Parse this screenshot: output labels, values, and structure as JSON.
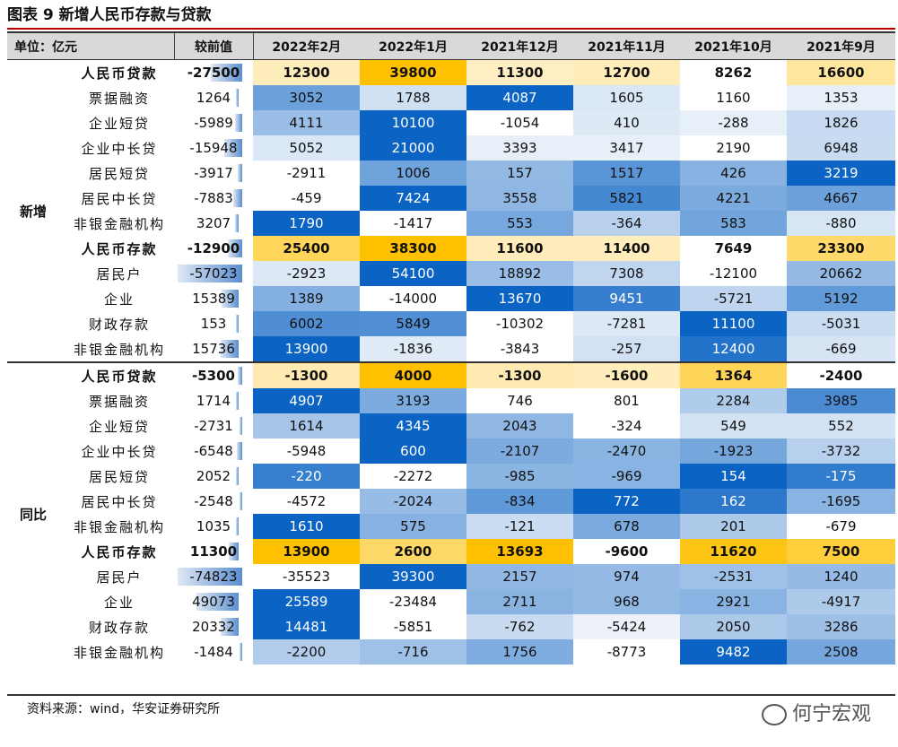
{
  "title": "图表 9  新增人民币存款与贷款",
  "header": {
    "unit": "单位：亿元",
    "change": "较前值",
    "months": [
      "2022年2月",
      "2022年1月",
      "2021年12月",
      "2021年11月",
      "2021年10月",
      "2021年9月"
    ]
  },
  "groups": [
    {
      "label": "新增",
      "rows": [
        {
          "name": "人民币贷款",
          "bold": true,
          "change": "-27500",
          "values": [
            "12300",
            "39800",
            "11300",
            "12700",
            "8262",
            "16600"
          ]
        },
        {
          "name": "票据融资",
          "bold": false,
          "change": "1264",
          "values": [
            "3052",
            "1788",
            "4087",
            "1605",
            "1160",
            "1353"
          ]
        },
        {
          "name": "企业短贷",
          "bold": false,
          "change": "-5989",
          "values": [
            "4111",
            "10100",
            "-1054",
            "410",
            "-288",
            "1826"
          ]
        },
        {
          "name": "企业中长贷",
          "bold": false,
          "change": "-15948",
          "values": [
            "5052",
            "21000",
            "3393",
            "3417",
            "2190",
            "6948"
          ]
        },
        {
          "name": "居民短贷",
          "bold": false,
          "change": "-3917",
          "values": [
            "-2911",
            "1006",
            "157",
            "1517",
            "426",
            "3219"
          ]
        },
        {
          "name": "居民中长贷",
          "bold": false,
          "change": "-7883",
          "values": [
            "-459",
            "7424",
            "3558",
            "5821",
            "4221",
            "4667"
          ]
        },
        {
          "name": "非银金融机构",
          "bold": false,
          "change": "3207",
          "values": [
            "1790",
            "-1417",
            "553",
            "-364",
            "583",
            "-880"
          ]
        },
        {
          "name": "人民币存款",
          "bold": true,
          "change": "-12900",
          "values": [
            "25400",
            "38300",
            "11600",
            "11400",
            "7649",
            "23300"
          ]
        },
        {
          "name": "居民户",
          "bold": false,
          "change": "-57023",
          "values": [
            "-2923",
            "54100",
            "18892",
            "7308",
            "-12100",
            "20662"
          ]
        },
        {
          "name": "企业",
          "bold": false,
          "change": "15389",
          "values": [
            "1389",
            "-14000",
            "13670",
            "9451",
            "-5721",
            "5192"
          ]
        },
        {
          "name": "财政存款",
          "bold": false,
          "change": "153",
          "values": [
            "6002",
            "5849",
            "-10302",
            "-7281",
            "11100",
            "-5031"
          ]
        },
        {
          "name": "非银金融机构",
          "bold": false,
          "change": "15736",
          "values": [
            "13900",
            "-1836",
            "-3843",
            "-257",
            "12400",
            "-669"
          ]
        }
      ]
    },
    {
      "label": "同比",
      "rows": [
        {
          "name": "人民币贷款",
          "bold": true,
          "change": "-5300",
          "values": [
            "-1300",
            "4000",
            "-1300",
            "-1600",
            "1364",
            "-2400"
          ]
        },
        {
          "name": "票据融资",
          "bold": false,
          "change": "1714",
          "values": [
            "4907",
            "3193",
            "746",
            "801",
            "2284",
            "3985"
          ]
        },
        {
          "name": "企业短贷",
          "bold": false,
          "change": "-2731",
          "values": [
            "1614",
            "4345",
            "2043",
            "-324",
            "549",
            "552"
          ]
        },
        {
          "name": "企业中长贷",
          "bold": false,
          "change": "-6548",
          "values": [
            "-5948",
            "600",
            "-2107",
            "-2470",
            "-1923",
            "-3732"
          ]
        },
        {
          "name": "居民短贷",
          "bold": false,
          "change": "2052",
          "values": [
            "-220",
            "-2272",
            "-985",
            "-969",
            "154",
            "-175"
          ]
        },
        {
          "name": "居民中长贷",
          "bold": false,
          "change": "-2548",
          "values": [
            "-4572",
            "-2024",
            "-834",
            "772",
            "162",
            "-1695"
          ]
        },
        {
          "name": "非银金融机构",
          "bold": false,
          "change": "1035",
          "values": [
            "1610",
            "575",
            "-121",
            "678",
            "201",
            "-679"
          ]
        },
        {
          "name": "人民币存款",
          "bold": true,
          "change": "11300",
          "values": [
            "13900",
            "2600",
            "13693",
            "-9600",
            "11620",
            "7500"
          ]
        },
        {
          "name": "居民户",
          "bold": false,
          "change": "-74823",
          "values": [
            "-35523",
            "39300",
            "2157",
            "974",
            "-2531",
            "1240"
          ]
        },
        {
          "name": "企业",
          "bold": false,
          "change": "49073",
          "values": [
            "25589",
            "-23484",
            "2711",
            "968",
            "2921",
            "-4917"
          ]
        },
        {
          "name": "财政存款",
          "bold": false,
          "change": "20332",
          "values": [
            "14481",
            "-5851",
            "-762",
            "-5424",
            "2050",
            "3286"
          ]
        },
        {
          "name": "非银金融机构",
          "bold": false,
          "change": "-1484",
          "values": [
            "-2200",
            "-716",
            "1756",
            "-8773",
            "9482",
            "2508"
          ]
        }
      ]
    }
  ],
  "colors": {
    "blue_low": "#eef3fa",
    "blue_high": "#0b63c4",
    "orange_low": "#fff3d6",
    "orange_high": "#ffc000",
    "bar_low": "#dfe8f4",
    "bar_high": "#5b8ed0",
    "title_rule": "#c00000"
  },
  "footer": {
    "source": "资料来源：wind，华安证券研究所",
    "watermark": "何宁宏观"
  }
}
